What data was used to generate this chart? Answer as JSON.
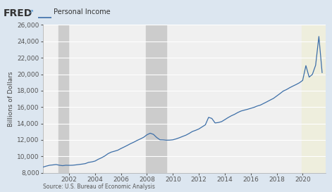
{
  "title": "Personal Income",
  "ylabel": "Billions of Dollars",
  "source": "Source: U.S. Bureau of Economic Analysis",
  "line_color": "#3d6fa8",
  "line_width": 0.9,
  "background_color": "#dce6f0",
  "plot_bg_color": "#f0f0f0",
  "recession_color": "#cccccc",
  "recent_shade_color": "#eeeedd",
  "ylim": [
    8000,
    26000
  ],
  "yticks": [
    8000,
    10000,
    12000,
    14000,
    16000,
    18000,
    20000,
    22000,
    24000,
    26000
  ],
  "xlim": [
    2000.0,
    2021.75
  ],
  "recessions": [
    {
      "start": 2001.17,
      "end": 2001.92
    },
    {
      "start": 2007.92,
      "end": 2009.5
    }
  ],
  "recent_shade": {
    "start": 2019.92,
    "end": 2021.75
  },
  "xtick_years": [
    2002,
    2004,
    2006,
    2008,
    2010,
    2012,
    2014,
    2016,
    2018,
    2020
  ],
  "data": {
    "years": [
      2000.0,
      2000.25,
      2000.5,
      2000.75,
      2001.0,
      2001.25,
      2001.5,
      2001.75,
      2002.0,
      2002.25,
      2002.5,
      2002.75,
      2003.0,
      2003.25,
      2003.5,
      2003.75,
      2004.0,
      2004.25,
      2004.5,
      2004.75,
      2005.0,
      2005.25,
      2005.5,
      2005.75,
      2006.0,
      2006.25,
      2006.5,
      2006.75,
      2007.0,
      2007.25,
      2007.5,
      2007.75,
      2008.0,
      2008.25,
      2008.5,
      2008.75,
      2009.0,
      2009.25,
      2009.5,
      2009.75,
      2010.0,
      2010.25,
      2010.5,
      2010.75,
      2011.0,
      2011.25,
      2011.5,
      2011.75,
      2012.0,
      2012.25,
      2012.5,
      2012.75,
      2013.0,
      2013.25,
      2013.5,
      2013.75,
      2014.0,
      2014.25,
      2014.5,
      2014.75,
      2015.0,
      2015.25,
      2015.5,
      2015.75,
      2016.0,
      2016.25,
      2016.5,
      2016.75,
      2017.0,
      2017.25,
      2017.5,
      2017.75,
      2018.0,
      2018.25,
      2018.5,
      2018.75,
      2019.0,
      2019.25,
      2019.5,
      2019.75,
      2020.0,
      2020.25,
      2020.5,
      2020.75,
      2021.0,
      2021.25,
      2021.5
    ],
    "values": [
      8700,
      8820,
      8920,
      8960,
      9010,
      8920,
      8870,
      8920,
      8910,
      8920,
      8960,
      9010,
      9060,
      9120,
      9270,
      9330,
      9430,
      9650,
      9830,
      10050,
      10330,
      10520,
      10630,
      10750,
      10960,
      11150,
      11350,
      11560,
      11740,
      11950,
      12130,
      12330,
      12630,
      12820,
      12680,
      12300,
      12020,
      12010,
      11970,
      11980,
      12020,
      12130,
      12270,
      12430,
      12580,
      12790,
      13030,
      13170,
      13340,
      13590,
      13840,
      14750,
      14620,
      14070,
      14120,
      14230,
      14470,
      14720,
      14940,
      15120,
      15340,
      15520,
      15630,
      15730,
      15850,
      15970,
      16130,
      16250,
      16450,
      16650,
      16860,
      17060,
      17350,
      17640,
      17950,
      18130,
      18360,
      18560,
      18750,
      18960,
      19250,
      21050,
      19650,
      19980,
      21100,
      24600,
      20200
    ]
  }
}
